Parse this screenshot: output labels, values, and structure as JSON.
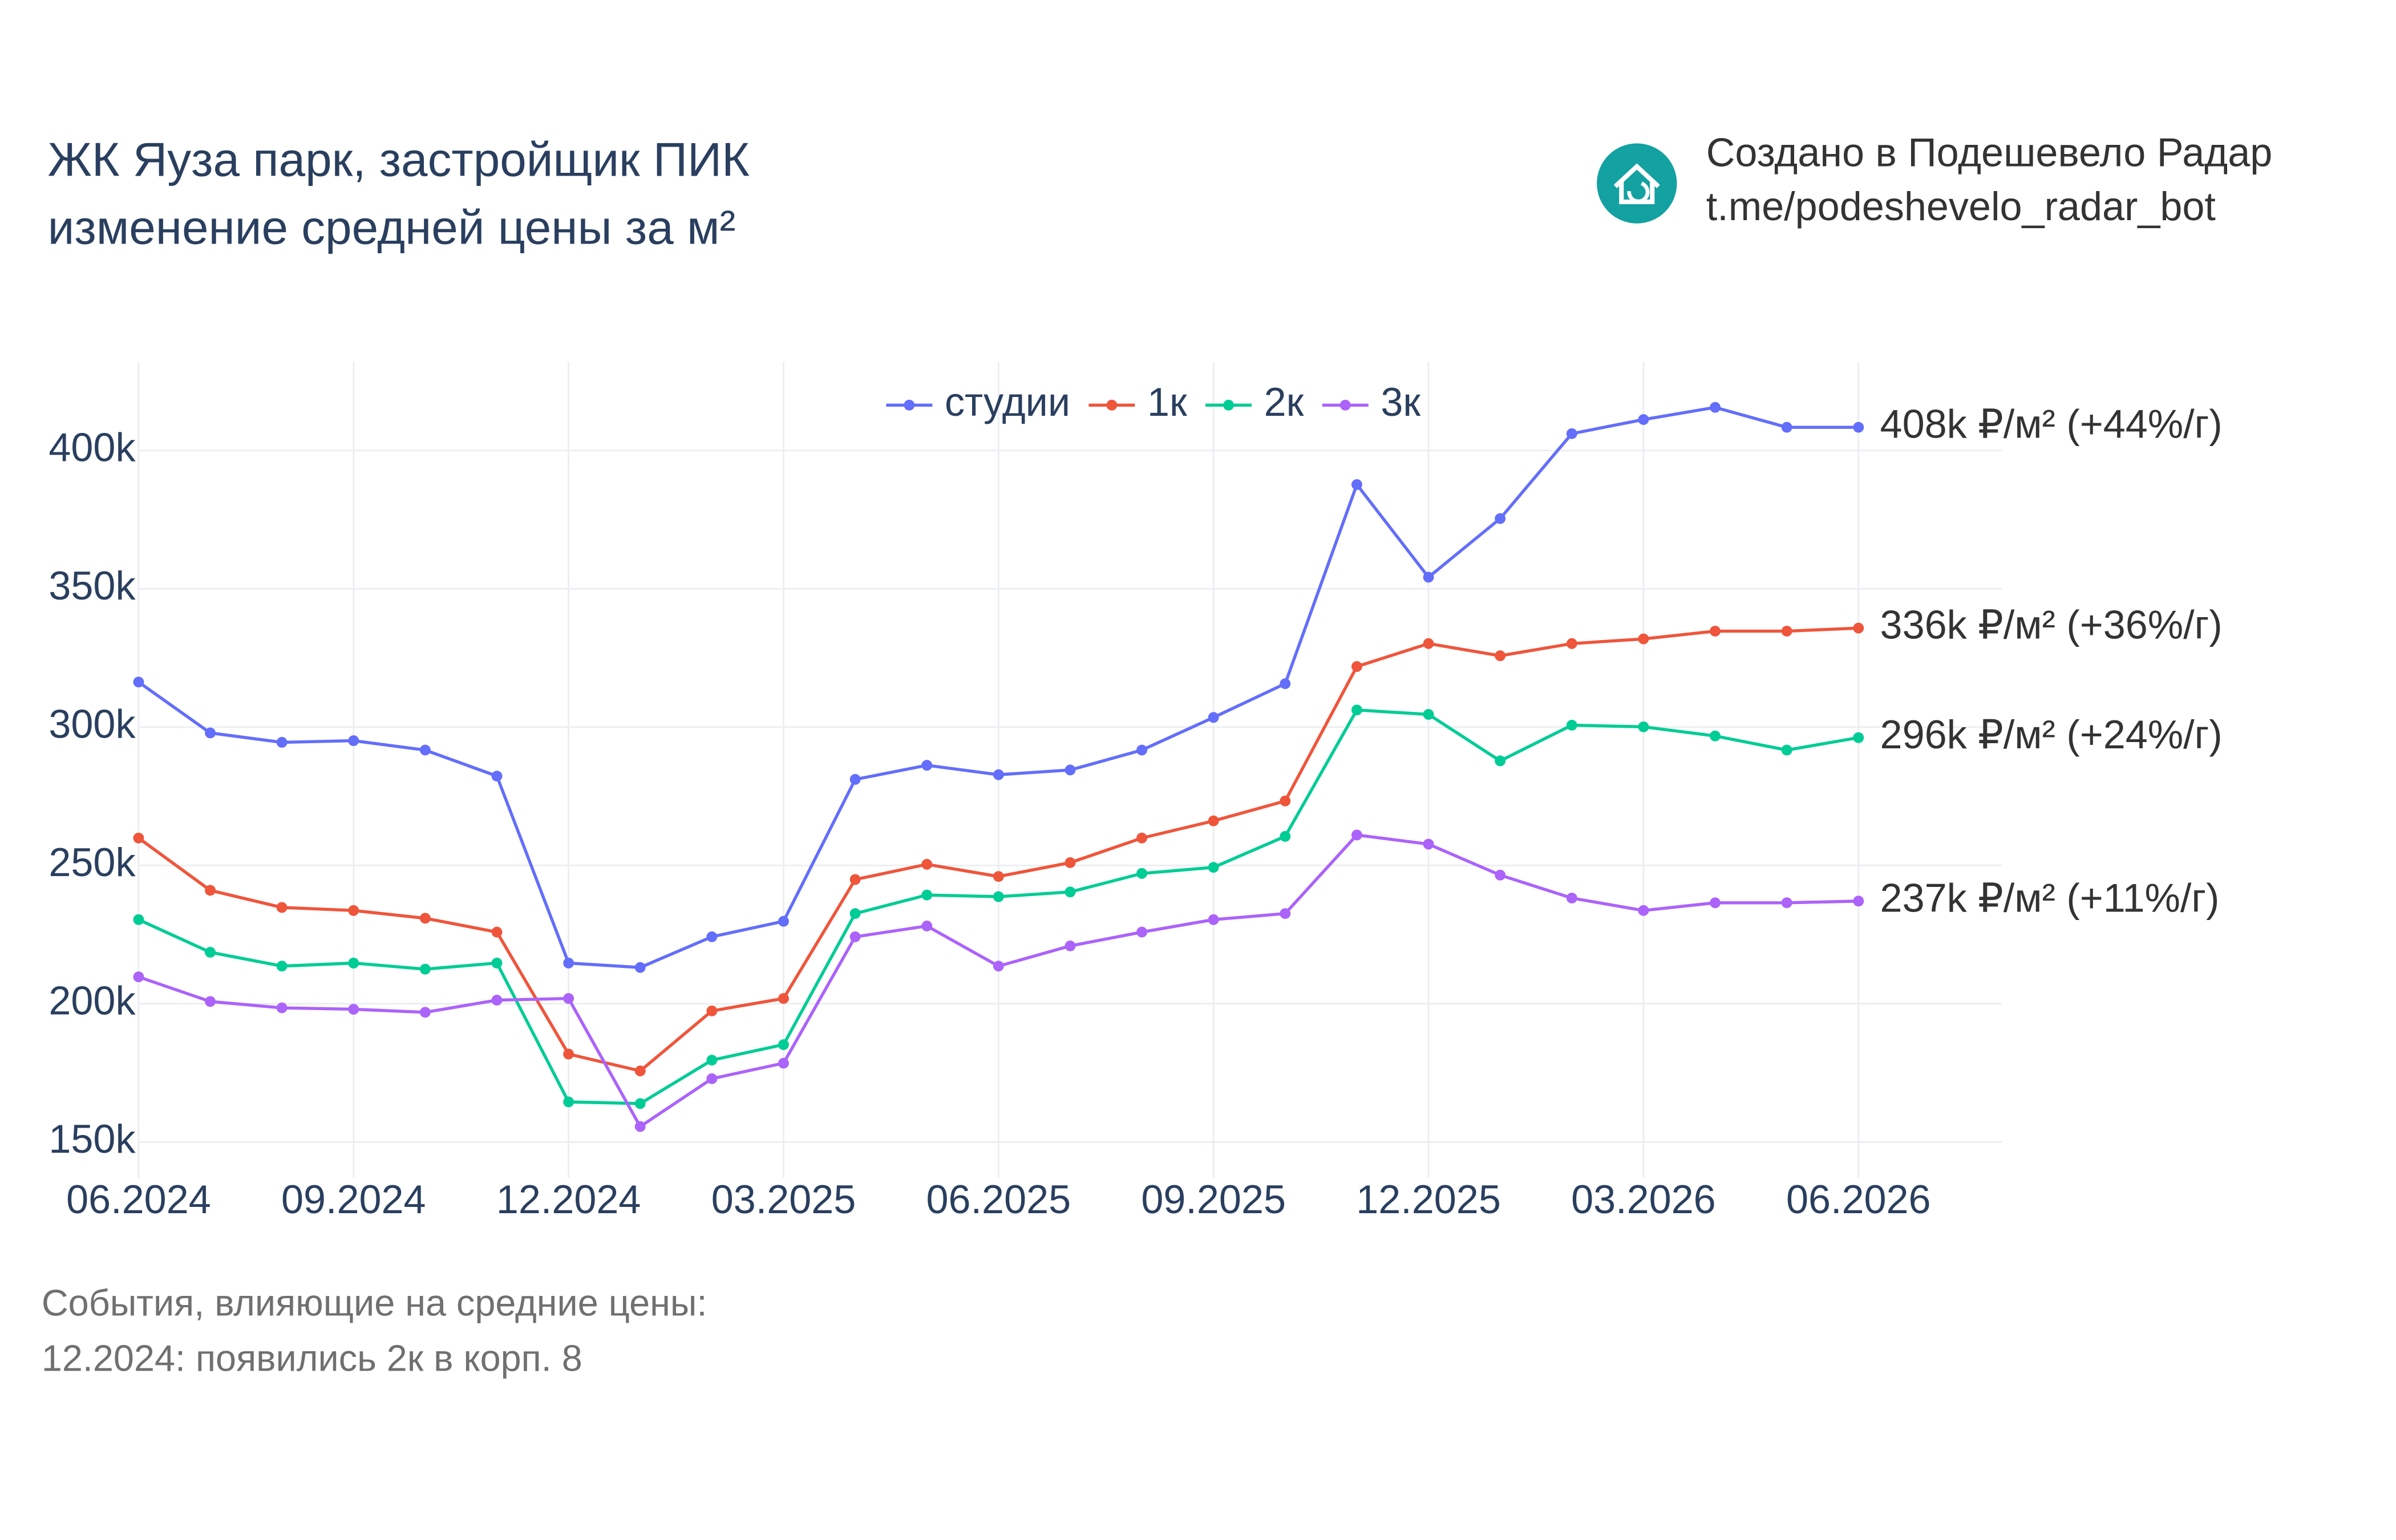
{
  "chart_data": {
    "type": "line",
    "title": [
      "ЖК Яуза парк, застройщик ПИК",
      "изменение средней цены за м²"
    ],
    "credit": [
      "Создано в Подешевело Радар",
      "t.me/podeshevelo_radar_bot"
    ],
    "notes": [
      "События, влияющие на средние цены:",
      "12.2024: появились 2к в корп. 8"
    ],
    "x": [
      "06.2024",
      "07.2024",
      "08.2024",
      "09.2024",
      "10.2024",
      "11.2024",
      "12.2024",
      "01.2025",
      "02.2025",
      "03.2025",
      "04.2025",
      "05.2025",
      "06.2025",
      "07.2025",
      "08.2025",
      "09.2025",
      "10.2025",
      "11.2025",
      "12.2025",
      "01.2026",
      "02.2026",
      "03.2026",
      "04.2026",
      "05.2026",
      "06.2026"
    ],
    "xlim": [
      "06.2024",
      "08.2026"
    ],
    "xticks": [
      "06.2024",
      "09.2024",
      "12.2024",
      "03.2025",
      "06.2025",
      "09.2025",
      "12.2025",
      "03.2026",
      "06.2026"
    ],
    "ylim": [
      137000,
      432000
    ],
    "yticks": [
      {
        "value": 150000,
        "label": "150k"
      },
      {
        "value": 200000,
        "label": "200k"
      },
      {
        "value": 250000,
        "label": "250k"
      },
      {
        "value": 300000,
        "label": "300k"
      },
      {
        "value": 350000,
        "label": "350k"
      },
      {
        "value": 400000,
        "label": "400k"
      }
    ],
    "grid": true,
    "legend": "top-center",
    "series": [
      {
        "name": "студии",
        "color": "#636efa",
        "annotation": "408k ₽/м² (+44%/г)",
        "values": [
          316300,
          297900,
          294500,
          295100,
          291700,
          282300,
          214700,
          213100,
          224200,
          229800,
          281100,
          286200,
          282800,
          284500,
          291700,
          303500,
          315700,
          387700,
          354200,
          375400,
          406100,
          411200,
          415600,
          408400,
          408400
        ]
      },
      {
        "name": "1к",
        "color": "#ef553b",
        "annotation": "336k ₽/м² (+36%/г)",
        "values": [
          259900,
          241000,
          234800,
          233700,
          230900,
          225900,
          181800,
          175700,
          197400,
          201900,
          244900,
          250400,
          246000,
          251000,
          259900,
          266100,
          273300,
          321900,
          330200,
          325800,
          330200,
          331900,
          334700,
          334700,
          335800
        ]
      },
      {
        "name": "2к",
        "color": "#00cc96",
        "annotation": "296k ₽/м² (+24%/г)",
        "values": [
          230400,
          218600,
          213600,
          214700,
          212500,
          214700,
          164500,
          163900,
          179600,
          185200,
          232600,
          239300,
          238700,
          240400,
          247100,
          249300,
          260500,
          306200,
          304600,
          287800,
          300700,
          300100,
          296800,
          291700,
          296200
        ]
      },
      {
        "name": "3к",
        "color": "#ab63fa",
        "annotation": "237k ₽/м² (+11%/г)",
        "values": [
          209700,
          200800,
          198500,
          198000,
          196900,
          201300,
          201900,
          155600,
          172900,
          178500,
          224200,
          228100,
          213600,
          220900,
          225900,
          230400,
          232600,
          261000,
          257700,
          246500,
          238200,
          233700,
          236500,
          236500,
          237100
        ]
      }
    ]
  }
}
